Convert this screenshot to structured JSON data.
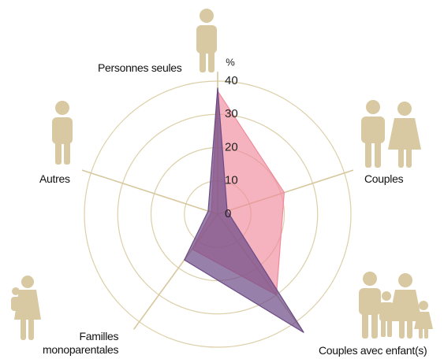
{
  "chart_data": {
    "type": "radar",
    "categories": [
      "Personnes seules",
      "Couples",
      "Couples avec enfant(s)",
      "Familles\nmonoparentales",
      "Autres"
    ],
    "unit": "%",
    "rlim": [
      0,
      40
    ],
    "rticks": [
      0,
      10,
      20,
      30,
      40
    ],
    "grid": true,
    "series": [
      {
        "color": "#f08a9c",
        "values": [
          37,
          21,
          30,
          13,
          2
        ]
      },
      {
        "color": "#6b4a86",
        "values": [
          38,
          3,
          44,
          17,
          3
        ]
      }
    ]
  }
}
